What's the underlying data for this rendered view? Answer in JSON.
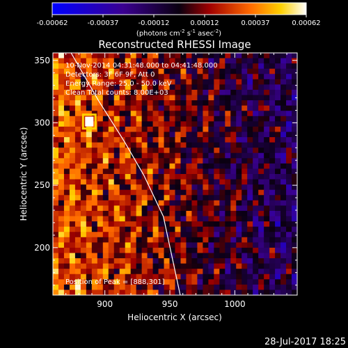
{
  "chart_data": {
    "type": "heatmap",
    "title": "Reconstructed RHESSI Image",
    "xlabel": "Heliocentric X (arcsec)",
    "ylabel": "Heliocentric Y (arcsec)",
    "xlim": [
      860,
      1048
    ],
    "ylim": [
      162,
      356
    ],
    "x_ticks": [
      900,
      950,
      1000
    ],
    "y_ticks": [
      200,
      250,
      300,
      350
    ],
    "colorbar": {
      "ticks": [
        "-0.00062",
        "-0.00037",
        "-0.00012",
        "0.00012",
        "0.00037",
        "0.00062"
      ],
      "range": [
        -0.00062,
        0.00062
      ],
      "unit_label": "(photons cm",
      "unit_sup1": "-2",
      "unit_mid": " s",
      "unit_sup2": "-1",
      "unit_mid2": " asec",
      "unit_sup3": "-2",
      "unit_end": ")"
    },
    "annotations": [
      "10-Nov-2014 04:31:48.000 to 04:41:48.000",
      "Detectors: 3F 6F 9F, Att 0",
      "Energy Range: 25.0 - 50.0 keV",
      "Clean    Total counts: 8.00E+03"
    ],
    "peak_label": "Position of Peak = [888,301]",
    "peak": [
      888,
      301
    ],
    "limb_curve": [
      [
        874,
        356
      ],
      [
        895,
        318
      ],
      [
        915,
        285
      ],
      [
        930,
        258
      ],
      [
        945,
        225
      ],
      [
        958,
        162
      ]
    ]
  },
  "footer": {
    "timestamp": "28-Jul-2017 18:25"
  }
}
